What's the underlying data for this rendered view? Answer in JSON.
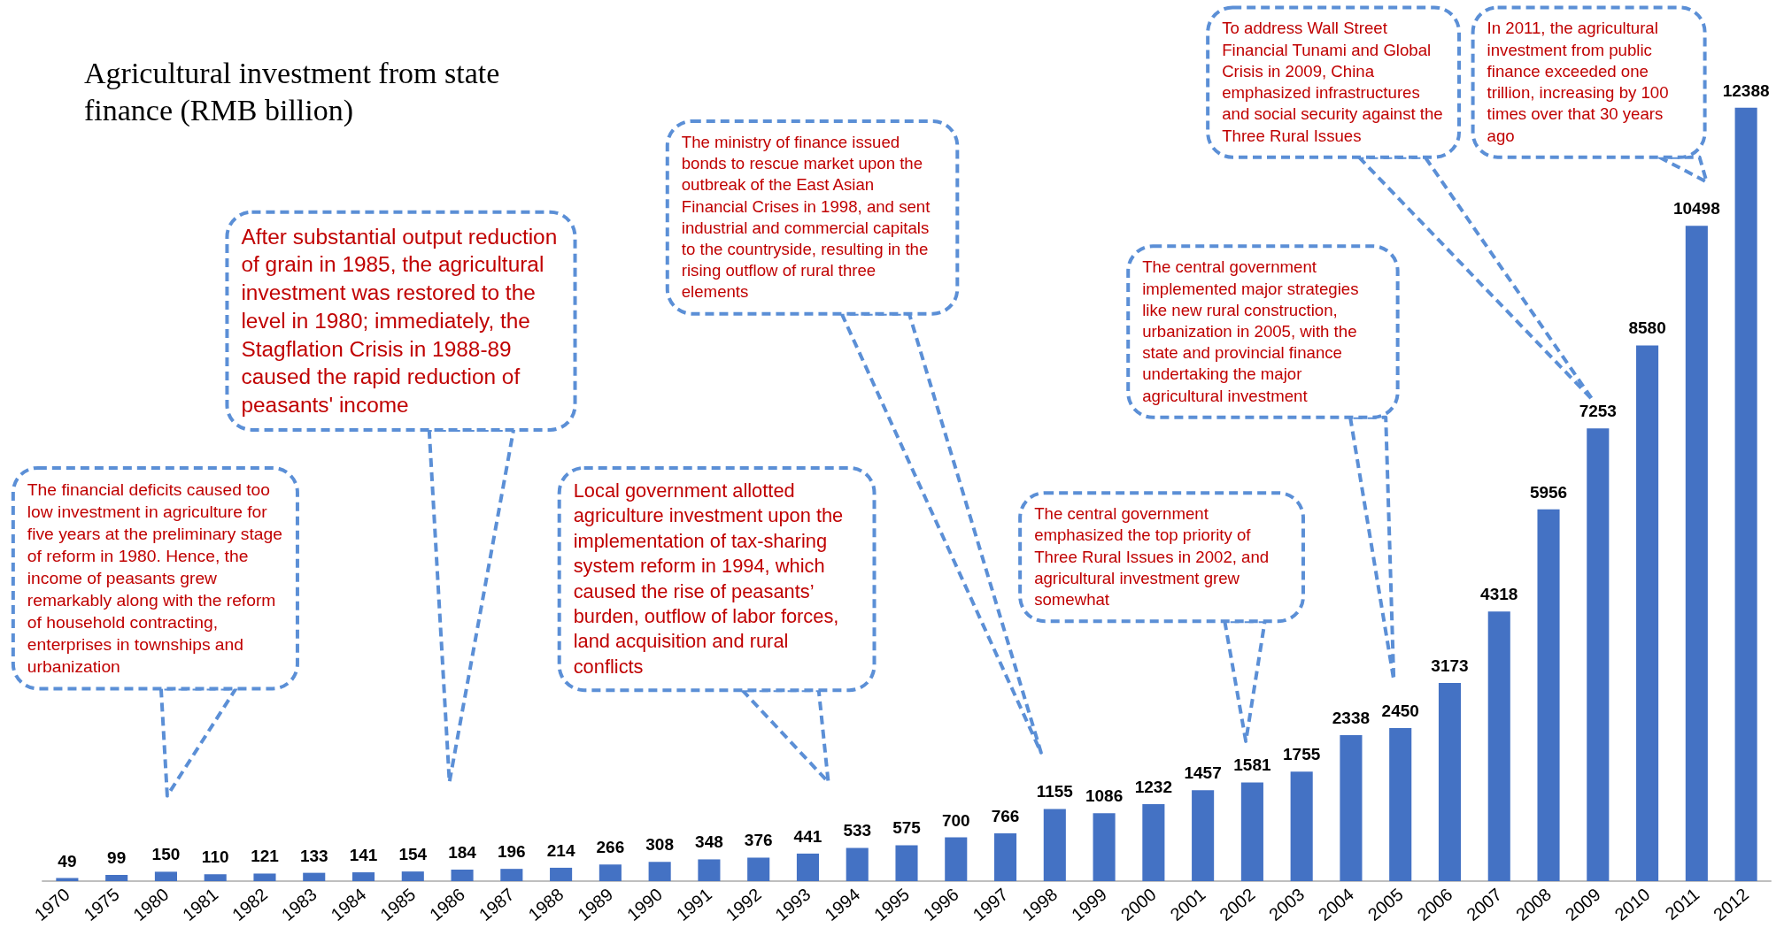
{
  "chart_data": {
    "type": "bar",
    "title": "Agricultural investment from state finance (RMB billion)",
    "categories": [
      "1970",
      "1975",
      "1980",
      "1981",
      "1982",
      "1983",
      "1984",
      "1985",
      "1986",
      "1987",
      "1988",
      "1989",
      "1990",
      "1991",
      "1992",
      "1993",
      "1994",
      "1995",
      "1996",
      "1997",
      "1998",
      "1999",
      "2000",
      "2001",
      "2002",
      "2003",
      "2004",
      "2005",
      "2006",
      "2007",
      "2008",
      "2009",
      "2010",
      "2011",
      "2012"
    ],
    "values": [
      49,
      99,
      150,
      110,
      121,
      133,
      141,
      154,
      184,
      196,
      214,
      266,
      308,
      348,
      376,
      441,
      533,
      575,
      700,
      766,
      1155,
      1086,
      1232,
      1457,
      1581,
      1755,
      2338,
      2450,
      3173,
      4318,
      5956,
      7253,
      8580,
      10498,
      12388
    ],
    "color": "#4472c4",
    "data_labels": true,
    "annotations": [
      "The financial deficits caused too low investment in agriculture for five years at the preliminary stage of reform in 1980. Hence, the income of peasants grew remarkably along with the reform of household contracting, enterprises in townships and urbanization",
      "After substantial output reduction of grain in 1985, the agricultural investment was restored to the level in 1980; immediately, the Stagflation Crisis in 1988-89 caused the rapid reduction of peasants' income",
      "Local government allotted agriculture investment upon the implementation of tax-sharing system reform in 1994, which caused the rise of peasants’ burden, outflow of labor forces, land acquisition and rural conflicts",
      "The ministry of finance issued bonds to rescue market upon the outbreak of the East Asian Financial Crises in 1998, and sent industrial and commercial capitals to the countryside, resulting in the rising outflow of rural three elements",
      "The central government emphasized the top priority of Three Rural Issues in 2002, and agricultural investment grew somewhat",
      "The central government implemented major strategies like new rural construction, urbanization in 2005, with the state and provincial finance undertaking the major agricultural investment",
      "To address Wall Street Financial Tunami and Global Crisis in 2009, China emphasized infrastructures and social security against the Three Rural Issues",
      "In 2011, the agricultural investment from public finance exceeded one trillion, increasing by 100 times over that 30 years ago"
    ]
  }
}
